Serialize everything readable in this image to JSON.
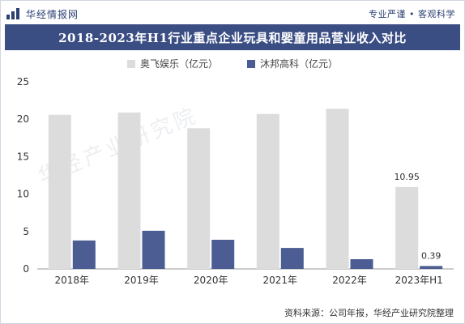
{
  "header": {
    "brand": "华经情报网",
    "slogan": "专业严谨 • 客观科学"
  },
  "chart_title": "2018-2023年H1行业重点企业玩具和婴童用品营业收入对比",
  "source": "资料来源：公司年报，华经产业研究院整理",
  "watermark": "华经产业研究院",
  "colors": {
    "series_1": "#dcdcdc",
    "series_2": "#4b5d92",
    "title_bg": "#3b4e84"
  },
  "chart_data": {
    "type": "bar",
    "title": "2018-2023年H1行业重点企业玩具和婴童用品营业收入对比",
    "xlabel": "",
    "ylabel": "",
    "categories": [
      "2018年",
      "2019年",
      "2020年",
      "2021年",
      "2022年",
      "2023年H1"
    ],
    "series": [
      {
        "name": "奥飞娱乐（亿元）",
        "values": [
          20.6,
          20.9,
          18.8,
          20.7,
          21.4,
          10.95
        ]
      },
      {
        "name": "沐邦高科（亿元）",
        "values": [
          3.8,
          5.1,
          3.9,
          2.8,
          1.3,
          0.39
        ]
      }
    ],
    "ylim": [
      0,
      25
    ],
    "yticks": [
      0,
      5,
      10,
      15,
      20,
      25
    ],
    "data_labels": [
      {
        "series": 0,
        "index": 5,
        "text": "10.95"
      },
      {
        "series": 1,
        "index": 5,
        "text": "0.39"
      }
    ],
    "legend_position": "top-center",
    "grid": false
  }
}
